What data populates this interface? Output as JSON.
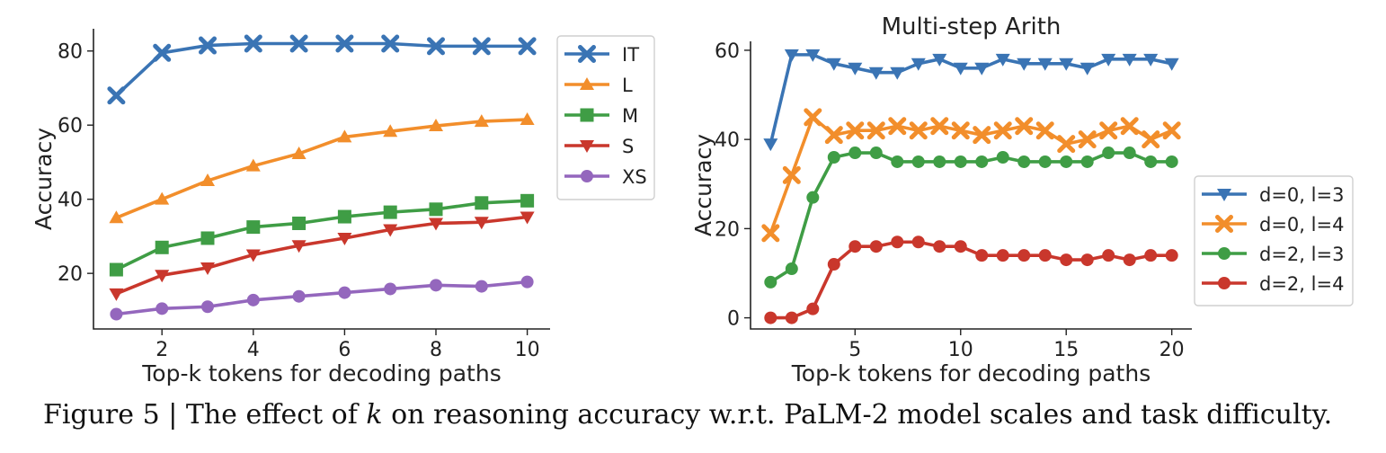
{
  "caption": {
    "prefix": "Figure 5 | The effect of ",
    "variable": "k",
    "suffix": " on reasoning accuracy w.r.t. PaLM-2 model scales and task difficulty."
  },
  "chart_data": [
    {
      "type": "line",
      "title": "",
      "xlabel": "Top-k tokens for decoding paths",
      "ylabel": "Accuracy",
      "xlim": [
        0.5,
        10.5
      ],
      "ylim": [
        5,
        86
      ],
      "xticks": [
        2,
        4,
        6,
        8,
        10
      ],
      "yticks": [
        20,
        40,
        60,
        80
      ],
      "grid": false,
      "legend_position": "outside-right",
      "x": [
        1,
        2,
        3,
        4,
        5,
        6,
        7,
        8,
        9,
        10
      ],
      "series": [
        {
          "name": "IT",
          "color": "#3a74b4",
          "marker": "x-thick",
          "values": [
            68,
            79.5,
            81.5,
            82,
            82,
            82,
            82,
            81.3,
            81.3,
            81.3
          ]
        },
        {
          "name": "L",
          "color": "#f28e2b",
          "marker": "triangle-up",
          "values": [
            35,
            40,
            45,
            49,
            52.3,
            56.8,
            58.3,
            59.8,
            61,
            61.5
          ]
        },
        {
          "name": "M",
          "color": "#3f9d45",
          "marker": "square",
          "values": [
            21,
            27,
            29.5,
            32.5,
            33.5,
            35.3,
            36.5,
            37.3,
            39,
            39.6
          ]
        },
        {
          "name": "S",
          "color": "#c9372c",
          "marker": "triangle-down",
          "values": [
            14.5,
            19.5,
            21.5,
            25,
            27.5,
            29.5,
            31.8,
            33.5,
            33.8,
            35.2
          ]
        },
        {
          "name": "XS",
          "color": "#9467bd",
          "marker": "circle",
          "values": [
            9,
            10.5,
            11,
            12.8,
            13.8,
            14.8,
            15.8,
            16.8,
            16.5,
            17.7
          ]
        }
      ]
    },
    {
      "type": "line",
      "title": "Multi-step Arith",
      "xlabel": "Top-k tokens for decoding paths",
      "ylabel": "Accuracy",
      "xlim": [
        0.05,
        20.95
      ],
      "ylim": [
        -2.5,
        62
      ],
      "xticks": [
        5,
        10,
        15,
        20
      ],
      "yticks": [
        0,
        20,
        40,
        60
      ],
      "grid": false,
      "legend_position": "center-right",
      "x": [
        1,
        2,
        3,
        4,
        5,
        6,
        7,
        8,
        9,
        10,
        11,
        12,
        13,
        14,
        15,
        16,
        17,
        18,
        19,
        20
      ],
      "series": [
        {
          "name": "d=0, l=3",
          "color": "#3a74b4",
          "marker": "triangle-down",
          "values": [
            39,
            59,
            59,
            57,
            56,
            55,
            55,
            57,
            58,
            56,
            56,
            58,
            57,
            57,
            57,
            56,
            58,
            58,
            58,
            57
          ]
        },
        {
          "name": "d=0, l=4",
          "color": "#f28e2b",
          "marker": "x-thick",
          "values": [
            19,
            32,
            45,
            41,
            42,
            42,
            43,
            42,
            43,
            42,
            41,
            42,
            43,
            42,
            39,
            40,
            42,
            43,
            40,
            42
          ]
        },
        {
          "name": "d=2, l=3",
          "color": "#3f9d45",
          "marker": "circle",
          "values": [
            8,
            11,
            27,
            36,
            37,
            37,
            35,
            35,
            35,
            35,
            35,
            36,
            35,
            35,
            35,
            35,
            37,
            37,
            35,
            35
          ]
        },
        {
          "name": "d=2, l=4",
          "color": "#c9372c",
          "marker": "circle",
          "values": [
            0,
            0,
            2,
            12,
            16,
            16,
            17,
            17,
            16,
            16,
            14,
            14,
            14,
            14,
            13,
            13,
            14,
            13,
            14,
            14
          ]
        }
      ]
    }
  ]
}
